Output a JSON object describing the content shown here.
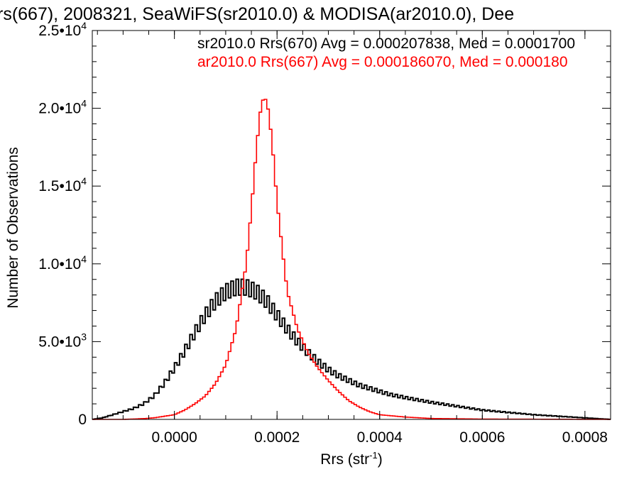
{
  "chart_data": {
    "type": "line",
    "title": "rs(667), 2008321, SeaWiFS(sr2010.0) & MODISA(ar2010.0), Dee",
    "xlabel_main": "Rrs (str",
    "xlabel_sup": "-1",
    "xlabel_close": ")",
    "ylabel": "Number of Observations",
    "xlim": [
      -0.00016,
      0.00085
    ],
    "ylim": [
      0,
      25000
    ],
    "x_ticks": [
      {
        "value": 0.0,
        "label": "0.0000"
      },
      {
        "value": 0.0002,
        "label": "0.0002"
      },
      {
        "value": 0.0004,
        "label": "0.0004"
      },
      {
        "value": 0.0006,
        "label": "0.0006"
      },
      {
        "value": 0.0008,
        "label": "0.0008"
      }
    ],
    "y_ticks": [
      {
        "value": 0,
        "mant": "0",
        "exp": ""
      },
      {
        "value": 5000,
        "mant": "5.0•10",
        "exp": "3"
      },
      {
        "value": 10000,
        "mant": "1.0•10",
        "exp": "4"
      },
      {
        "value": 15000,
        "mant": "1.5•10",
        "exp": "4"
      },
      {
        "value": 20000,
        "mant": "2.0•10",
        "exp": "4"
      },
      {
        "value": 25000,
        "mant": "2.5•10",
        "exp": "4"
      }
    ],
    "bin_width": 5e-06,
    "series": [
      {
        "name": "sr2010.0 Rrs(670)",
        "legend": "sr2010.0 Rrs(670) Avg = 0.000207838, Med = 0.0001700",
        "color": "#000000",
        "x": [
          -0.00016,
          -0.00014,
          -0.00012,
          -0.0001,
          -8e-05,
          -6e-05,
          -4e-05,
          -2e-05,
          0.0,
          2e-05,
          4e-05,
          6e-05,
          8e-05,
          0.0001,
          0.00012,
          0.00014,
          0.00016,
          0.00018,
          0.0002,
          0.00022,
          0.00024,
          0.00026,
          0.00028,
          0.0003,
          0.00032,
          0.00034,
          0.00036,
          0.00038,
          0.0004,
          0.00042,
          0.00045,
          0.0005,
          0.00055,
          0.0006,
          0.00065,
          0.0007,
          0.00075,
          0.0008,
          0.00085
        ],
        "y": [
          0,
          100,
          300,
          500,
          700,
          1000,
          1500,
          2300,
          3300,
          4400,
          5600,
          6700,
          7600,
          8200,
          8500,
          8500,
          8200,
          7600,
          6700,
          5800,
          5000,
          4300,
          3700,
          3200,
          2800,
          2500,
          2200,
          2000,
          1800,
          1600,
          1400,
          1100,
          850,
          600,
          450,
          300,
          200,
          100,
          0
        ]
      },
      {
        "name": "ar2010.0 Rrs(667)",
        "legend": "ar2010.0 Rrs(667) Avg = 0.000186070, Med = 0.000180",
        "color": "#ff0000",
        "x": [
          -0.00016,
          -0.0001,
          -6e-05,
          -4e-05,
          -2e-05,
          0.0,
          2e-05,
          4e-05,
          6e-05,
          8e-05,
          0.0001,
          0.00012,
          0.00014,
          0.00015,
          0.00016,
          0.00017,
          0.00018,
          0.00019,
          0.0002,
          0.00021,
          0.00022,
          0.00024,
          0.00026,
          0.00028,
          0.0003,
          0.00032,
          0.00034,
          0.00036,
          0.00038,
          0.0004,
          0.00045,
          0.0005,
          0.0006,
          0.00085
        ],
        "y": [
          0,
          0,
          50,
          100,
          200,
          300,
          600,
          1000,
          1500,
          2300,
          3500,
          5800,
          10000,
          13500,
          17500,
          20500,
          20600,
          18000,
          14000,
          11000,
          8200,
          5800,
          4300,
          3300,
          2500,
          1800,
          1200,
          800,
          500,
          300,
          150,
          60,
          20,
          0
        ]
      }
    ]
  }
}
